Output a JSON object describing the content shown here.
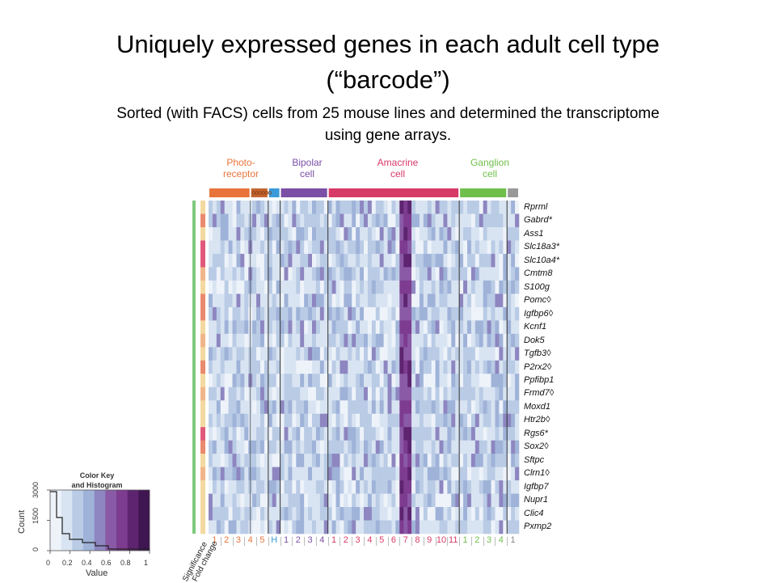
{
  "slide": {
    "title_line1": "Uniquely expressed genes in each adult cell type",
    "title_line2": "(“barcode”)",
    "subtitle_line1": "Sorted (with FACS) cells from 25 mouse lines and determined the transcriptome",
    "subtitle_line2": "using gene arrays."
  },
  "groups": [
    {
      "line1": "Photo-",
      "line2": "receptor",
      "color": "#e8743b"
    },
    {
      "line1": "Bipolar",
      "line2": "cell",
      "color": "#7b4fa6"
    },
    {
      "line1": "Amacrine",
      "line2": "cell",
      "color": "#d83a68"
    },
    {
      "line1": "Ganglion",
      "line2": "cell",
      "color": "#6fbf4a"
    }
  ],
  "genes": [
    "Rprml",
    "Gabrd*",
    "Ass1",
    "Slc18a3*",
    "Slc10a4*",
    "Cmtm8",
    "S100g",
    "Pomc◊",
    "Igfbp6◊",
    "Kcnf1",
    "Dok5",
    "Tgfb3◊",
    "P2rx2◊",
    "Ppfibp1",
    "Frmd7◊",
    "Moxd1",
    "Htr2b◊",
    "Rgs6*",
    "Sox2◊",
    "Sftpc",
    "Clrn1◊",
    "Igfbp7",
    "Nupr1",
    "Clic4",
    "Pxmp2"
  ],
  "column_labels": [
    "1",
    "2",
    "3",
    "4",
    "5",
    "H",
    "1",
    "2",
    "3",
    "4",
    "1",
    "2",
    "3",
    "4",
    "5",
    "6",
    "7",
    "8",
    "9",
    "10",
    "11",
    "1",
    "2",
    "3",
    "4",
    "1"
  ],
  "column_label_colors": [
    "#e8743b",
    "#e8743b",
    "#e8743b",
    "#e8743b",
    "#e8743b",
    "#3a9ad9",
    "#7b4fa6",
    "#7b4fa6",
    "#7b4fa6",
    "#7b4fa6",
    "#d83a68",
    "#d83a68",
    "#d83a68",
    "#d83a68",
    "#d83a68",
    "#d83a68",
    "#d83a68",
    "#d83a68",
    "#d83a68",
    "#d83a68",
    "#d83a68",
    "#6fbf4a",
    "#6fbf4a",
    "#6fbf4a",
    "#6fbf4a",
    "#888888"
  ],
  "side_labels": {
    "significance": "Significance",
    "fold_change": "Fold change"
  },
  "color_key": {
    "title_line1": "Color Key",
    "title_line2": "and Histogram",
    "y_label": "Count",
    "y_ticks": [
      "0",
      "1500",
      "3000"
    ],
    "x_label": "Value",
    "x_ticks": [
      "0",
      "0.2",
      "0.4",
      "0.6",
      "0.8",
      "1"
    ],
    "colors": [
      "#eef3fa",
      "#d9e4f2",
      "#b9cbe5",
      "#9fb2d8",
      "#8d86c0",
      "#8a5aa6",
      "#7d3c8f",
      "#5e2470",
      "#3f1552"
    ]
  }
}
